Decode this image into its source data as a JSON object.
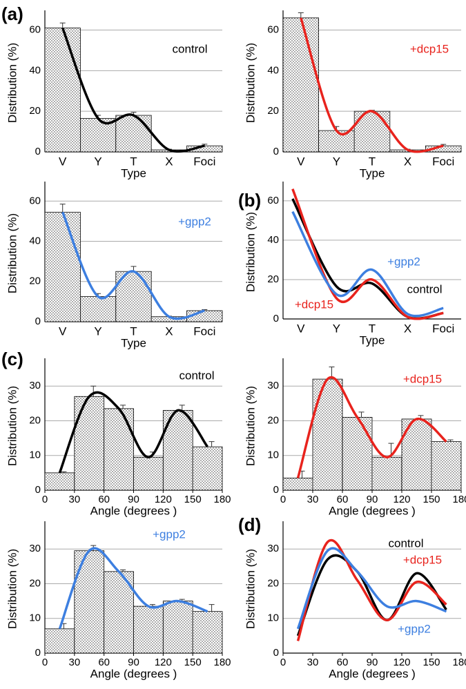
{
  "chart_data": [
    {
      "type": "bar",
      "panel_label": "(a)",
      "annotation": "control",
      "xlabel": "Type",
      "ylabel": "Distribution (%)",
      "categories": [
        "V",
        "Y",
        "T",
        "X",
        "Foci"
      ],
      "values": [
        61,
        16.5,
        18,
        1,
        3
      ],
      "errors": [
        2.5,
        1.5,
        1.5,
        0.3,
        0.8
      ],
      "color": "#000000",
      "ylim": [
        0,
        68
      ],
      "yticks": [
        0,
        20,
        40,
        60
      ]
    },
    {
      "type": "bar",
      "annotation": "+dcp15",
      "xlabel": "Type",
      "ylabel": "Distribution (%)",
      "categories": [
        "V",
        "Y",
        "T",
        "X",
        "Foci"
      ],
      "values": [
        66,
        10.5,
        20,
        1,
        3
      ],
      "errors": [
        2.5,
        2,
        0.5,
        0.3,
        0.7
      ],
      "color": "#e8231d",
      "ylim": [
        0,
        68
      ],
      "yticks": [
        0,
        20,
        40,
        60
      ]
    },
    {
      "type": "bar",
      "annotation": "+gpp2",
      "xlabel": "Type",
      "ylabel": "Distribution (%)",
      "categories": [
        "V",
        "Y",
        "T",
        "X",
        "Foci"
      ],
      "values": [
        54.5,
        12.5,
        25,
        2.5,
        5.5
      ],
      "errors": [
        4,
        1.5,
        2.5,
        0.3,
        0.5
      ],
      "color": "#3d7fe0",
      "ylim": [
        0,
        68
      ],
      "yticks": [
        0,
        20,
        40,
        60
      ]
    },
    {
      "type": "line",
      "panel_label": "(b)",
      "xlabel": "Type",
      "ylabel": "Distribution (%)",
      "categories": [
        "V",
        "Y",
        "T",
        "X",
        "Foci"
      ],
      "series": [
        {
          "name": "control",
          "color": "#000000",
          "values": [
            61,
            16.5,
            18,
            1,
            3
          ]
        },
        {
          "name": "+dcp15",
          "color": "#e8231d",
          "values": [
            66,
            10.5,
            20,
            1,
            3
          ]
        },
        {
          "name": "+gpp2",
          "color": "#3d7fe0",
          "values": [
            54.5,
            12.5,
            25,
            2.5,
            5.5
          ]
        }
      ],
      "ylim": [
        0,
        68
      ],
      "yticks": [
        0,
        20,
        40,
        60
      ]
    },
    {
      "type": "histogram",
      "panel_label": "(c)",
      "annotation": "control",
      "xlabel": "Angle (degrees )",
      "ylabel": "Distribution (%)",
      "bins": [
        0,
        30,
        60,
        90,
        120,
        150,
        180
      ],
      "values": [
        5,
        27,
        23.5,
        9.5,
        23,
        12.5
      ],
      "errors": [
        0.3,
        3,
        1,
        1.5,
        1.5,
        1.5
      ],
      "color": "#000000",
      "xlim": [
        0,
        180
      ],
      "xticks": [
        0,
        30,
        60,
        90,
        120,
        150,
        180
      ],
      "ylim": [
        0,
        37
      ],
      "yticks": [
        0,
        10,
        20,
        30
      ]
    },
    {
      "type": "histogram",
      "annotation": "+dcp15",
      "xlabel": "Angle (degrees )",
      "ylabel": "Distribution (%)",
      "bins": [
        0,
        30,
        60,
        90,
        120,
        150,
        180
      ],
      "values": [
        3.5,
        32,
        21,
        9.5,
        20.5,
        14
      ],
      "errors": [
        2,
        3.5,
        1.5,
        4,
        1,
        0.5
      ],
      "color": "#e8231d",
      "xlim": [
        0,
        180
      ],
      "xticks": [
        0,
        30,
        60,
        90,
        120,
        150,
        180
      ],
      "ylim": [
        0,
        37
      ],
      "yticks": [
        0,
        10,
        20,
        30
      ]
    },
    {
      "type": "histogram",
      "annotation": "+gpp2",
      "xlabel": "Angle (degrees )",
      "ylabel": "Distribution (%)",
      "bins": [
        0,
        30,
        60,
        90,
        120,
        150,
        180
      ],
      "values": [
        7,
        29.5,
        23.5,
        13.5,
        15,
        12
      ],
      "errors": [
        1.5,
        1.5,
        0.5,
        0.5,
        0.5,
        2
      ],
      "color": "#3d7fe0",
      "xlim": [
        0,
        180
      ],
      "xticks": [
        0,
        30,
        60,
        90,
        120,
        150,
        180
      ],
      "ylim": [
        0,
        37
      ],
      "yticks": [
        0,
        10,
        20,
        30
      ]
    },
    {
      "type": "line",
      "panel_label": "(d)",
      "xlabel": "Angle (degrees )",
      "ylabel": "Distribution (%)",
      "x": [
        15,
        45,
        75,
        105,
        135,
        165
      ],
      "series": [
        {
          "name": "control",
          "color": "#000000",
          "values": [
            5,
            27,
            23.5,
            9.5,
            23,
            12.5
          ]
        },
        {
          "name": "+dcp15",
          "color": "#e8231d",
          "values": [
            3.5,
            32,
            21,
            9.5,
            20.5,
            14
          ]
        },
        {
          "name": "+gpp2",
          "color": "#3d7fe0",
          "values": [
            7,
            29.5,
            23.5,
            13.5,
            15,
            12
          ]
        }
      ],
      "xlim": [
        0,
        180
      ],
      "xticks": [
        0,
        30,
        60,
        90,
        120,
        150,
        180
      ],
      "ylim": [
        0,
        37
      ],
      "yticks": [
        0,
        10,
        20,
        30
      ]
    }
  ]
}
